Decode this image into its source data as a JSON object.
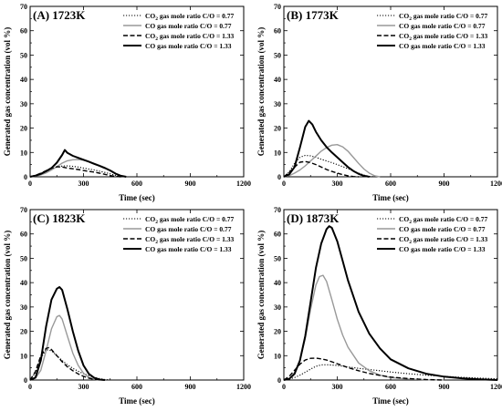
{
  "figure": {
    "panels": [
      {
        "title": "(A) 1723K",
        "xlabel": "Time (sec)",
        "ylabel": "Generated gas concentration (vol %)",
        "legend": [
          {
            "label_main": "CO",
            "label_sub": "2",
            "label_rest": " gas mole ratio C/O = 0.77",
            "style": "dotted",
            "color": "#000000"
          },
          {
            "label_main": "CO gas mole ratio C/O = 0.77",
            "label_sub": "",
            "label_rest": "",
            "style": "solid-gray",
            "color": "#999999"
          },
          {
            "label_main": "CO",
            "label_sub": "2",
            "label_rest": " gas mole ratio C/O = 1.33",
            "style": "dashed",
            "color": "#000000"
          },
          {
            "label_main": "CO gas mole ratio C/O = 1.33",
            "label_sub": "",
            "label_rest": "",
            "style": "solid-thick",
            "color": "#000000"
          }
        ]
      },
      {
        "title": "(B) 1773K",
        "xlabel": "Time (sec)",
        "ylabel": "Generated gas concentration (vol %)",
        "legend": [
          {
            "label_main": "CO",
            "label_sub": "2",
            "label_rest": " gas mole ratio C/O = 0.77",
            "style": "dotted",
            "color": "#000000"
          },
          {
            "label_main": "CO gas mole ratio C/O = 0.77",
            "label_sub": "",
            "label_rest": "",
            "style": "solid-gray",
            "color": "#999999"
          },
          {
            "label_main": "CO",
            "label_sub": "2",
            "label_rest": " gas mole ratio C/O = 1.33",
            "style": "dashed",
            "color": "#000000"
          },
          {
            "label_main": "CO gas mole ratio C/O = 1.33",
            "label_sub": "",
            "label_rest": "",
            "style": "solid-thick",
            "color": "#000000"
          }
        ]
      },
      {
        "title": "(C) 1823K",
        "xlabel": "Time (sec)",
        "ylabel": "Generated gas concentration (vol %)",
        "legend": [
          {
            "label_main": "CO",
            "label_sub": "2",
            "label_rest": " gas mole ratio C/O = 0.77",
            "style": "dotted",
            "color": "#000000"
          },
          {
            "label_main": "CO gas mole ratio C/O = 0.77",
            "label_sub": "",
            "label_rest": "",
            "style": "solid-gray",
            "color": "#999999"
          },
          {
            "label_main": "CO",
            "label_sub": "2",
            "label_rest": " gas mole ratio C/O = 1.33",
            "style": "dashed",
            "color": "#000000"
          },
          {
            "label_main": "CO gas mole ratio C/O = 1.33",
            "label_sub": "",
            "label_rest": "",
            "style": "solid-thick",
            "color": "#000000"
          }
        ]
      },
      {
        "title": "(D) 1873K",
        "xlabel": "Time (sec)",
        "ylabel": "Generated gas concentration (vol %)",
        "legend": [
          {
            "label_main": "CO",
            "label_sub": "2",
            "label_rest": " gas mole ratio C/O = 0.77",
            "style": "dotted",
            "color": "#000000"
          },
          {
            "label_main": "CO gas mole ratio C/O = 0.77",
            "label_sub": "",
            "label_rest": "",
            "style": "solid-gray",
            "color": "#999999"
          },
          {
            "label_main": "CO",
            "label_sub": "2",
            "label_rest": " gas mole ratio C/O = 1.33",
            "style": "dashed",
            "color": "#000000"
          },
          {
            "label_main": "CO gas mole ratio C/O = 1.33",
            "label_sub": "",
            "label_rest": "",
            "style": "solid-thick",
            "color": "#000000"
          }
        ]
      }
    ]
  },
  "chart_data": [
    {
      "type": "line",
      "title": "(A) 1723K",
      "xlabel": "Time (sec)",
      "ylabel": "Generated gas concentration (vol %)",
      "xlim": [
        0,
        1200
      ],
      "ylim": [
        0,
        70
      ],
      "xticks": [
        0,
        300,
        600,
        900,
        1200
      ],
      "yticks": [
        0,
        10,
        20,
        30,
        40,
        50,
        60,
        70
      ],
      "legend_position": "top-right",
      "series": [
        {
          "name": "CO2 gas mole ratio C/O = 0.77",
          "style": "dotted",
          "color": "#000000",
          "x": [
            0,
            30,
            60,
            90,
            120,
            150,
            180,
            210,
            240,
            270,
            300,
            330,
            360,
            390,
            420,
            450,
            480,
            510,
            540
          ],
          "y": [
            0,
            0.5,
            1.2,
            2.2,
            3.2,
            4.0,
            4.4,
            4.5,
            4.3,
            4.0,
            3.6,
            3.2,
            2.8,
            2.3,
            1.8,
            1.2,
            0.6,
            0.2,
            0
          ]
        },
        {
          "name": "CO gas mole ratio C/O = 0.77",
          "style": "solid",
          "color": "#999999",
          "x": [
            0,
            30,
            60,
            90,
            120,
            150,
            180,
            210,
            240,
            270,
            300,
            330,
            360,
            390,
            420,
            450,
            480,
            510,
            540
          ],
          "y": [
            0,
            0.3,
            0.8,
            1.6,
            2.8,
            4.2,
            5.6,
            6.6,
            7.0,
            7.1,
            6.8,
            6.2,
            5.5,
            4.7,
            3.8,
            2.6,
            1.3,
            0.4,
            0
          ]
        },
        {
          "name": "CO2 gas mole ratio C/O = 1.33",
          "style": "dashed",
          "color": "#000000",
          "x": [
            0,
            30,
            60,
            90,
            120,
            150,
            180,
            210,
            240,
            270,
            300,
            330,
            360,
            390,
            420,
            450,
            480,
            510
          ],
          "y": [
            0,
            0.6,
            1.5,
            2.5,
            3.5,
            4.1,
            4.0,
            3.6,
            3.3,
            3.0,
            2.6,
            2.2,
            1.9,
            1.5,
            1.0,
            0.5,
            0.2,
            0
          ]
        },
        {
          "name": "CO gas mole ratio C/O = 1.33",
          "style": "solid",
          "color": "#000000",
          "x": [
            0,
            30,
            60,
            90,
            120,
            150,
            180,
            195,
            210,
            240,
            270,
            300,
            330,
            360,
            390,
            420,
            450,
            480,
            510,
            540
          ],
          "y": [
            0,
            0.5,
            1.2,
            2.3,
            3.6,
            5.8,
            9.0,
            11.0,
            9.8,
            8.6,
            7.8,
            7.0,
            6.2,
            5.3,
            4.5,
            3.6,
            2.6,
            1.3,
            0.4,
            0
          ]
        }
      ]
    },
    {
      "type": "line",
      "title": "(B) 1773K",
      "xlabel": "Time (sec)",
      "ylabel": "Generated gas concentration (vol %)",
      "xlim": [
        0,
        1200
      ],
      "ylim": [
        0,
        70
      ],
      "xticks": [
        0,
        300,
        600,
        900,
        1200
      ],
      "yticks": [
        0,
        10,
        20,
        30,
        40,
        50,
        60,
        70
      ],
      "legend_position": "top-right",
      "series": [
        {
          "name": "CO2 gas mole ratio C/O = 0.77",
          "style": "dotted",
          "color": "#000000",
          "x": [
            0,
            30,
            60,
            90,
            120,
            150,
            180,
            210,
            240,
            270,
            300,
            330,
            360,
            390,
            420,
            450,
            480,
            510
          ],
          "y": [
            0,
            2.0,
            5.5,
            8.0,
            8.8,
            8.6,
            8.0,
            7.2,
            6.5,
            5.8,
            5.0,
            4.2,
            3.3,
            2.4,
            1.5,
            0.7,
            0.2,
            0
          ]
        },
        {
          "name": "CO gas mole ratio C/O = 0.77",
          "style": "solid",
          "color": "#999999",
          "x": [
            0,
            30,
            60,
            90,
            120,
            150,
            180,
            210,
            240,
            270,
            300,
            330,
            360,
            390,
            420,
            450,
            480,
            510,
            540
          ],
          "y": [
            0,
            0.5,
            1.5,
            2.8,
            4.5,
            6.5,
            8.5,
            10.5,
            12.0,
            13.0,
            13.2,
            12.3,
            10.5,
            8.0,
            5.5,
            3.2,
            1.5,
            0.4,
            0
          ]
        },
        {
          "name": "CO2 gas mole ratio C/O = 1.33",
          "style": "dashed",
          "color": "#000000",
          "x": [
            0,
            30,
            60,
            90,
            120,
            150,
            180,
            210,
            240,
            270,
            300,
            330,
            360,
            390,
            420
          ],
          "y": [
            0,
            1.8,
            4.0,
            6.0,
            6.3,
            5.8,
            5.0,
            4.0,
            3.0,
            2.2,
            1.5,
            0.9,
            0.4,
            0.1,
            0
          ]
        },
        {
          "name": "CO gas mole ratio C/O = 1.33",
          "style": "solid",
          "color": "#000000",
          "x": [
            0,
            30,
            60,
            90,
            120,
            140,
            160,
            180,
            210,
            240,
            270,
            300,
            330,
            360,
            390,
            420,
            450,
            480
          ],
          "y": [
            0,
            1.0,
            4.0,
            12.0,
            20.5,
            23.0,
            21.5,
            18.5,
            15.0,
            12.2,
            10.0,
            8.0,
            6.0,
            4.0,
            2.4,
            1.2,
            0.4,
            0
          ]
        }
      ]
    },
    {
      "type": "line",
      "title": "(C) 1823K",
      "xlabel": "Time (sec)",
      "ylabel": "Generated gas concentration (vol %)",
      "xlim": [
        0,
        1200
      ],
      "ylim": [
        0,
        70
      ],
      "xticks": [
        0,
        300,
        600,
        900,
        1200
      ],
      "yticks": [
        0,
        10,
        20,
        30,
        40,
        50,
        60,
        70
      ],
      "legend_position": "top-right",
      "series": [
        {
          "name": "CO2 gas mole ratio C/O = 0.77",
          "style": "dotted",
          "color": "#000000",
          "x": [
            0,
            30,
            60,
            90,
            120,
            150,
            180,
            210,
            240,
            270,
            300,
            330,
            360,
            390,
            420,
            450
          ],
          "y": [
            0,
            3.0,
            9.0,
            12.5,
            12.0,
            10.0,
            8.0,
            6.2,
            4.8,
            3.6,
            2.6,
            1.8,
            1.1,
            0.6,
            0.2,
            0
          ]
        },
        {
          "name": "CO gas mole ratio C/O = 0.77",
          "style": "solid",
          "color": "#999999",
          "x": [
            0,
            30,
            60,
            90,
            120,
            150,
            165,
            180,
            210,
            240,
            270,
            300,
            330,
            360,
            390
          ],
          "y": [
            0,
            0.8,
            4.0,
            12.0,
            21.0,
            26.0,
            26.5,
            25.0,
            18.0,
            11.0,
            6.0,
            2.8,
            1.0,
            0.3,
            0
          ]
        },
        {
          "name": "CO2 gas mole ratio C/O = 1.33",
          "style": "dashed",
          "color": "#000000",
          "x": [
            0,
            30,
            60,
            90,
            105,
            120,
            150,
            180,
            210,
            240,
            270,
            300,
            330,
            360,
            390,
            420
          ],
          "y": [
            0,
            3.5,
            10.0,
            13.0,
            13.3,
            12.5,
            10.0,
            7.5,
            5.4,
            3.8,
            2.5,
            1.5,
            0.8,
            0.3,
            0.1,
            0
          ]
        },
        {
          "name": "CO gas mole ratio C/O = 1.33",
          "style": "solid",
          "color": "#000000",
          "x": [
            0,
            30,
            60,
            90,
            120,
            150,
            165,
            180,
            210,
            240,
            270,
            300,
            330,
            360,
            390,
            420
          ],
          "y": [
            0,
            1.0,
            8.0,
            22.0,
            33.0,
            37.5,
            38.2,
            37.0,
            29.0,
            20.0,
            12.0,
            6.0,
            2.5,
            0.9,
            0.2,
            0
          ]
        }
      ]
    },
    {
      "type": "line",
      "title": "(D) 1873K",
      "xlabel": "Time (sec)",
      "ylabel": "Generated gas concentration (vol %)",
      "xlim": [
        0,
        1200
      ],
      "ylim": [
        0,
        70
      ],
      "xticks": [
        0,
        300,
        600,
        900,
        1200
      ],
      "yticks": [
        0,
        10,
        20,
        30,
        40,
        50,
        60,
        70
      ],
      "legend_position": "top-right",
      "series": [
        {
          "name": "CO2 gas mole ratio C/O = 0.77",
          "style": "dotted",
          "color": "#000000",
          "x": [
            0,
            30,
            60,
            90,
            120,
            150,
            180,
            210,
            240,
            300,
            360,
            420,
            480,
            540,
            600,
            700,
            800,
            900,
            1000,
            1100,
            1200
          ],
          "y": [
            0,
            0.4,
            1.0,
            2.0,
            3.2,
            4.5,
            5.6,
            6.2,
            6.3,
            6.0,
            5.4,
            4.8,
            4.3,
            3.8,
            3.3,
            2.6,
            2.0,
            1.5,
            1.1,
            0.8,
            0.5
          ]
        },
        {
          "name": "CO gas mole ratio C/O = 0.77",
          "style": "solid",
          "color": "#999999",
          "x": [
            0,
            30,
            60,
            90,
            120,
            150,
            180,
            200,
            220,
            240,
            270,
            300,
            330,
            360,
            420,
            480,
            540,
            600,
            700,
            800,
            900
          ],
          "y": [
            0,
            0.5,
            3.0,
            8.0,
            17.0,
            29.0,
            39.0,
            42.5,
            43.0,
            40.5,
            33.0,
            25.0,
            18.5,
            13.5,
            7.0,
            3.8,
            2.0,
            1.0,
            0.4,
            0.1,
            0
          ]
        },
        {
          "name": "CO2 gas mole ratio C/O = 1.33",
          "style": "dashed",
          "color": "#000000",
          "x": [
            0,
            30,
            60,
            90,
            120,
            150,
            180,
            210,
            240,
            270,
            300,
            330,
            360,
            420,
            480,
            540,
            600,
            700,
            800,
            900
          ],
          "y": [
            0,
            1.5,
            4.0,
            6.5,
            8.2,
            8.9,
            9.0,
            8.7,
            8.2,
            7.5,
            6.7,
            5.9,
            5.1,
            3.8,
            2.7,
            1.9,
            1.2,
            0.6,
            0.2,
            0
          ]
        },
        {
          "name": "CO gas mole ratio C/O = 1.33",
          "style": "solid",
          "color": "#000000",
          "x": [
            0,
            30,
            60,
            90,
            120,
            150,
            180,
            210,
            240,
            255,
            270,
            300,
            330,
            360,
            420,
            480,
            540,
            600,
            700,
            800,
            900,
            1000,
            1100,
            1200
          ],
          "y": [
            0,
            0.5,
            2.5,
            8.0,
            18.0,
            32.0,
            46.0,
            56.0,
            62.0,
            63.2,
            62.5,
            57.0,
            49.0,
            41.0,
            28.0,
            19.0,
            13.0,
            8.5,
            4.8,
            2.6,
            1.4,
            0.7,
            0.3,
            0
          ]
        }
      ]
    }
  ]
}
